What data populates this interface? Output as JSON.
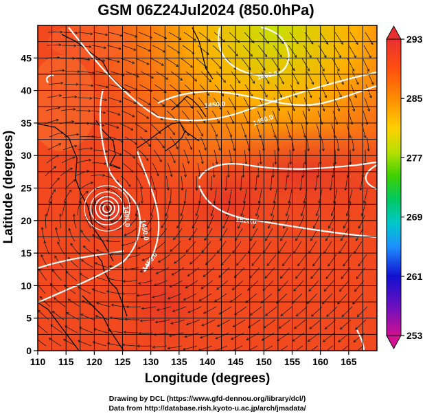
{
  "map": {
    "title": "GSM 06Z24Jul2024 (850.0hPa)",
    "xlabel": "Longitude (degrees)",
    "ylabel": "Latitude  (degrees)",
    "lon_range": [
      110,
      170
    ],
    "lat_range": [
      0,
      50
    ],
    "lon_ticks": [
      "110",
      "115",
      "120",
      "125",
      "130",
      "135",
      "140",
      "145",
      "150",
      "155",
      "160",
      "165"
    ],
    "lat_ticks": [
      "0",
      "5",
      "10",
      "15",
      "20",
      "25",
      "30",
      "35",
      "40",
      "45"
    ],
    "grid": true,
    "field": "temperature",
    "overlays": [
      "streamlines",
      "geopotential height contours",
      "coastlines"
    ]
  },
  "colorbar": {
    "min": 253,
    "max": 293,
    "labels": [
      "293",
      "285",
      "277",
      "269",
      "261",
      "253"
    ],
    "colors": [
      "#d01090",
      "#6a10c0",
      "#1010d0",
      "#1e90ff",
      "#00c8c8",
      "#00c860",
      "#40d000",
      "#b8e000",
      "#ffd000",
      "#ff8c00",
      "#ff5010",
      "#e83030"
    ]
  },
  "contours": {
    "color": "#ffffff",
    "labels": [
      "1400.0",
      "1450.0",
      "1450.0",
      "1450.0",
      "1450.0",
      "1520.0",
      "1450.0"
    ]
  },
  "credits": {
    "line1": "Drawing by DCL (https://www.gfd-dennou.org/library/dcl/)",
    "line2": "Data from http://database.rish.kyoto-u.ac.jp/arch/jmadata/"
  }
}
